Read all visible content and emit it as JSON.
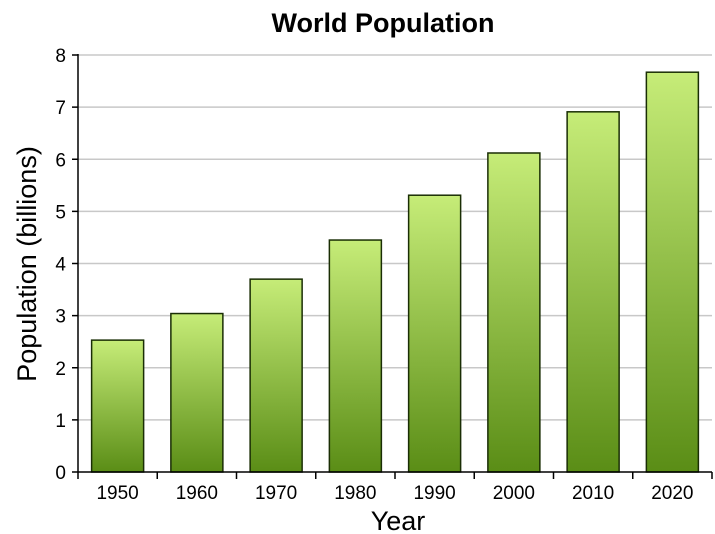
{
  "chart_data": {
    "type": "bar",
    "title": "World Population",
    "xlabel": "Year",
    "ylabel": "Population (billions)",
    "categories": [
      "1950",
      "1960",
      "1970",
      "1980",
      "1990",
      "2000",
      "2010",
      "2020"
    ],
    "values": [
      2.53,
      3.04,
      3.7,
      4.45,
      5.31,
      6.12,
      6.91,
      7.67
    ],
    "ylim": [
      0,
      8
    ],
    "yticks": [
      0,
      1,
      2,
      3,
      4,
      5,
      6,
      7,
      8
    ],
    "grid": true,
    "legend": "none",
    "colors": {
      "bar_top": "#c6ec78",
      "bar_bottom": "#5a8d16",
      "bar_outline": "#1a2e05",
      "grid": "#c8c8c8"
    }
  }
}
